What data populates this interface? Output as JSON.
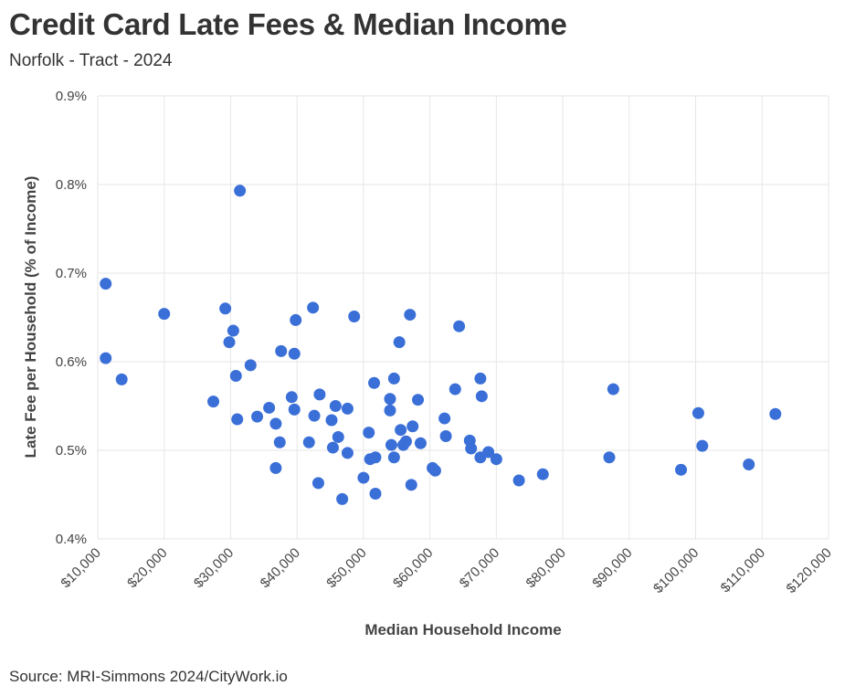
{
  "page": {
    "title": "Credit Card Late Fees & Median Income",
    "subtitle": "Norfolk - Tract - 2024",
    "source": "Source: MRI-Simmons 2024/CityWork.io"
  },
  "colors": {
    "point": "#3a6fd8",
    "grid": "#e6e6e6",
    "text": "#333333"
  },
  "chart_data": {
    "type": "scatter",
    "title": "Credit Card Late Fees & Median Income",
    "xlabel": "Median Household Income",
    "ylabel": "Late Fee per Household (% of Income)",
    "xlim": [
      10000,
      120000
    ],
    "ylim": [
      0.4,
      0.9
    ],
    "x_ticks": [
      10000,
      20000,
      30000,
      40000,
      50000,
      60000,
      70000,
      80000,
      90000,
      100000,
      110000,
      120000
    ],
    "x_tick_labels": [
      "$10,000",
      "$20,000",
      "$30,000",
      "$40,000",
      "$50,000",
      "$60,000",
      "$70,000",
      "$80,000",
      "$90,000",
      "$100,000",
      "$110,000",
      "$120,000"
    ],
    "y_ticks": [
      0.4,
      0.5,
      0.6,
      0.7,
      0.8,
      0.9
    ],
    "y_tick_labels": [
      "0.4%",
      "0.5%",
      "0.6%",
      "0.7%",
      "0.8%",
      "0.9%"
    ],
    "grid": true,
    "points": [
      {
        "x": 11200,
        "y": 0.688
      },
      {
        "x": 11200,
        "y": 0.604
      },
      {
        "x": 13600,
        "y": 0.58
      },
      {
        "x": 20000,
        "y": 0.654
      },
      {
        "x": 27400,
        "y": 0.555
      },
      {
        "x": 29200,
        "y": 0.66
      },
      {
        "x": 29800,
        "y": 0.622
      },
      {
        "x": 30400,
        "y": 0.635
      },
      {
        "x": 30800,
        "y": 0.584
      },
      {
        "x": 31000,
        "y": 0.535
      },
      {
        "x": 31400,
        "y": 0.793
      },
      {
        "x": 33000,
        "y": 0.596
      },
      {
        "x": 34000,
        "y": 0.538
      },
      {
        "x": 35800,
        "y": 0.548
      },
      {
        "x": 36800,
        "y": 0.53
      },
      {
        "x": 36800,
        "y": 0.48
      },
      {
        "x": 37400,
        "y": 0.509
      },
      {
        "x": 37600,
        "y": 0.612
      },
      {
        "x": 39200,
        "y": 0.56
      },
      {
        "x": 39600,
        "y": 0.609
      },
      {
        "x": 39600,
        "y": 0.546
      },
      {
        "x": 39800,
        "y": 0.647
      },
      {
        "x": 41800,
        "y": 0.509
      },
      {
        "x": 42400,
        "y": 0.661
      },
      {
        "x": 42600,
        "y": 0.539
      },
      {
        "x": 43200,
        "y": 0.463
      },
      {
        "x": 43400,
        "y": 0.563
      },
      {
        "x": 45200,
        "y": 0.534
      },
      {
        "x": 45400,
        "y": 0.503
      },
      {
        "x": 45800,
        "y": 0.55
      },
      {
        "x": 46200,
        "y": 0.515
      },
      {
        "x": 46800,
        "y": 0.445
      },
      {
        "x": 47600,
        "y": 0.547
      },
      {
        "x": 47600,
        "y": 0.497
      },
      {
        "x": 48600,
        "y": 0.651
      },
      {
        "x": 50000,
        "y": 0.469
      },
      {
        "x": 50800,
        "y": 0.52
      },
      {
        "x": 51000,
        "y": 0.49
      },
      {
        "x": 51600,
        "y": 0.576
      },
      {
        "x": 51800,
        "y": 0.492
      },
      {
        "x": 51800,
        "y": 0.451
      },
      {
        "x": 54000,
        "y": 0.558
      },
      {
        "x": 54000,
        "y": 0.545
      },
      {
        "x": 54200,
        "y": 0.506
      },
      {
        "x": 54600,
        "y": 0.581
      },
      {
        "x": 54600,
        "y": 0.492
      },
      {
        "x": 55400,
        "y": 0.622
      },
      {
        "x": 55600,
        "y": 0.523
      },
      {
        "x": 56000,
        "y": 0.506
      },
      {
        "x": 56400,
        "y": 0.51
      },
      {
        "x": 57000,
        "y": 0.653
      },
      {
        "x": 57200,
        "y": 0.461
      },
      {
        "x": 57400,
        "y": 0.527
      },
      {
        "x": 58200,
        "y": 0.557
      },
      {
        "x": 58600,
        "y": 0.508
      },
      {
        "x": 60400,
        "y": 0.48
      },
      {
        "x": 60800,
        "y": 0.477
      },
      {
        "x": 62200,
        "y": 0.536
      },
      {
        "x": 62400,
        "y": 0.516
      },
      {
        "x": 63800,
        "y": 0.569
      },
      {
        "x": 64400,
        "y": 0.64
      },
      {
        "x": 66000,
        "y": 0.511
      },
      {
        "x": 66200,
        "y": 0.502
      },
      {
        "x": 67600,
        "y": 0.581
      },
      {
        "x": 67600,
        "y": 0.492
      },
      {
        "x": 67800,
        "y": 0.561
      },
      {
        "x": 68800,
        "y": 0.498
      },
      {
        "x": 70000,
        "y": 0.49
      },
      {
        "x": 73400,
        "y": 0.466
      },
      {
        "x": 77000,
        "y": 0.473
      },
      {
        "x": 87000,
        "y": 0.492
      },
      {
        "x": 87600,
        "y": 0.569
      },
      {
        "x": 97800,
        "y": 0.478
      },
      {
        "x": 100400,
        "y": 0.542
      },
      {
        "x": 101000,
        "y": 0.505
      },
      {
        "x": 108000,
        "y": 0.484
      },
      {
        "x": 112000,
        "y": 0.541
      }
    ]
  }
}
